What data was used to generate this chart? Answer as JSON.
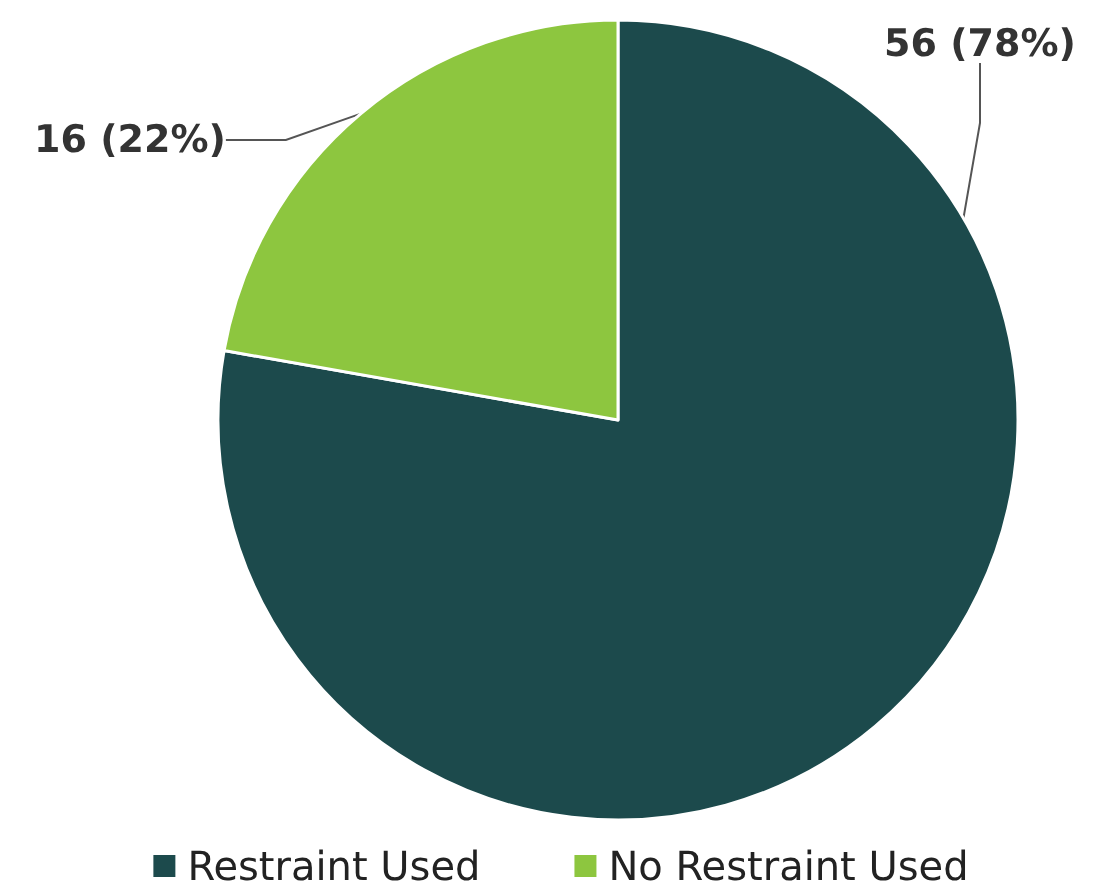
{
  "chart_data": {
    "type": "pie",
    "categories": [
      "Restraint Used",
      "No Restraint Used"
    ],
    "values": [
      56,
      16
    ],
    "colors": [
      "#1c4a4c",
      "#8dc63f"
    ],
    "value_labels": [
      "56 (78%)",
      "16 (22%)"
    ],
    "legend": "bottom"
  }
}
